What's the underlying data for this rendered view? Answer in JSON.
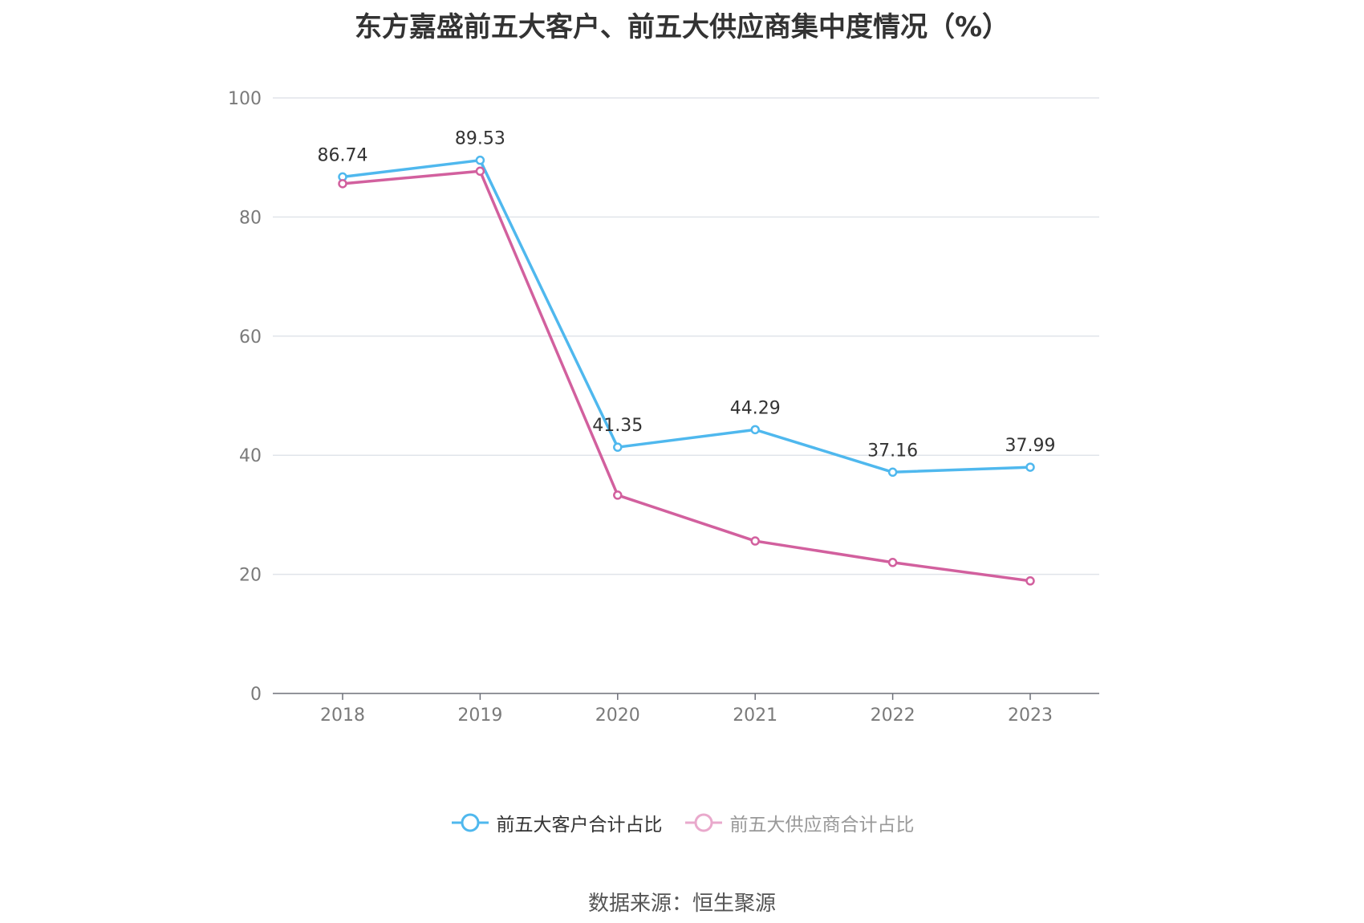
{
  "chart_data": {
    "type": "line",
    "title": "东方嘉盛前五大客户、前五大供应商集中度情况（%）",
    "categories": [
      "2018",
      "2019",
      "2020",
      "2021",
      "2022",
      "2023"
    ],
    "ylim": [
      0,
      100
    ],
    "yticks": [
      "0",
      "20",
      "40",
      "60",
      "80",
      "100"
    ],
    "grid": true,
    "legend_position": "bottom",
    "series": [
      {
        "name": "前五大客户合计占比",
        "color": "#4fb8ee",
        "values": [
          86.74,
          89.53,
          41.35,
          44.29,
          37.16,
          37.99
        ],
        "labels": [
          "86.74",
          "89.53",
          "41.35",
          "44.29",
          "37.16",
          "37.99"
        ]
      },
      {
        "name": "前五大供应商合计占比",
        "color": "#d2609e",
        "values": [
          85.6,
          87.7,
          33.3,
          25.6,
          22.0,
          18.9
        ]
      }
    ]
  },
  "source": "数据来源：恒生聚源"
}
